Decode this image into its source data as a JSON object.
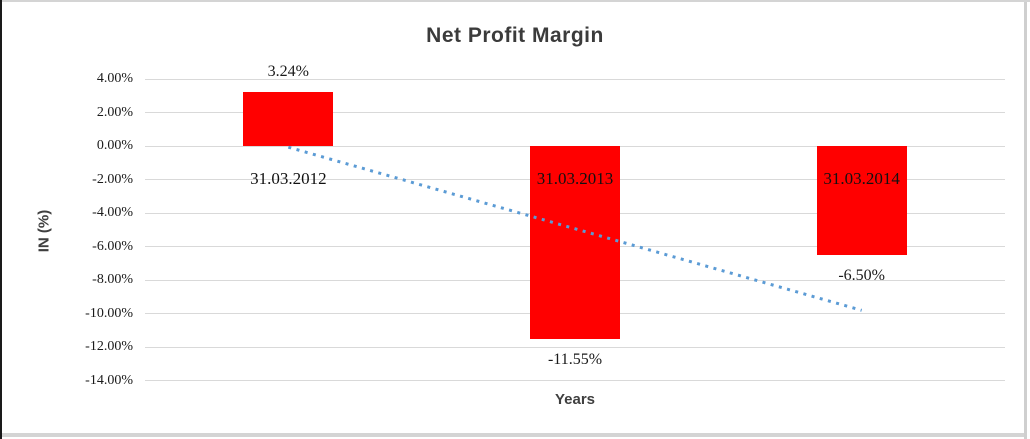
{
  "chart_data": {
    "type": "bar",
    "title": "Net Profit Margin",
    "xlabel": "Years",
    "ylabel": "IN (%)",
    "categories": [
      "31.03.2012",
      "31.03.2013",
      "31.03.2014"
    ],
    "values": [
      3.24,
      -11.55,
      -6.5
    ],
    "data_labels": [
      "3.24%",
      "-11.55%",
      "-6.50%"
    ],
    "y_ticks": [
      {
        "label": "4.00%",
        "value": 4
      },
      {
        "label": "2.00%",
        "value": 2
      },
      {
        "label": "0.00%",
        "value": 0
      },
      {
        "label": "-2.00%",
        "value": -2
      },
      {
        "label": "-4.00%",
        "value": -4
      },
      {
        "label": "-6.00%",
        "value": -6
      },
      {
        "label": "-8.00%",
        "value": -8
      },
      {
        "label": "-10.00%",
        "value": -10
      },
      {
        "label": "-12.00%",
        "value": -12
      },
      {
        "label": "-14.00%",
        "value": -14
      }
    ],
    "ylim": [
      -14,
      4
    ],
    "grid": true,
    "legend": "none",
    "bar_color": "#ff0000",
    "gridline_color": "#d9d9d9",
    "trendline": {
      "kind": "linear",
      "style": "dotted",
      "color": "#5b9bd5",
      "y_start": -0.07,
      "y_end": -9.81
    }
  }
}
